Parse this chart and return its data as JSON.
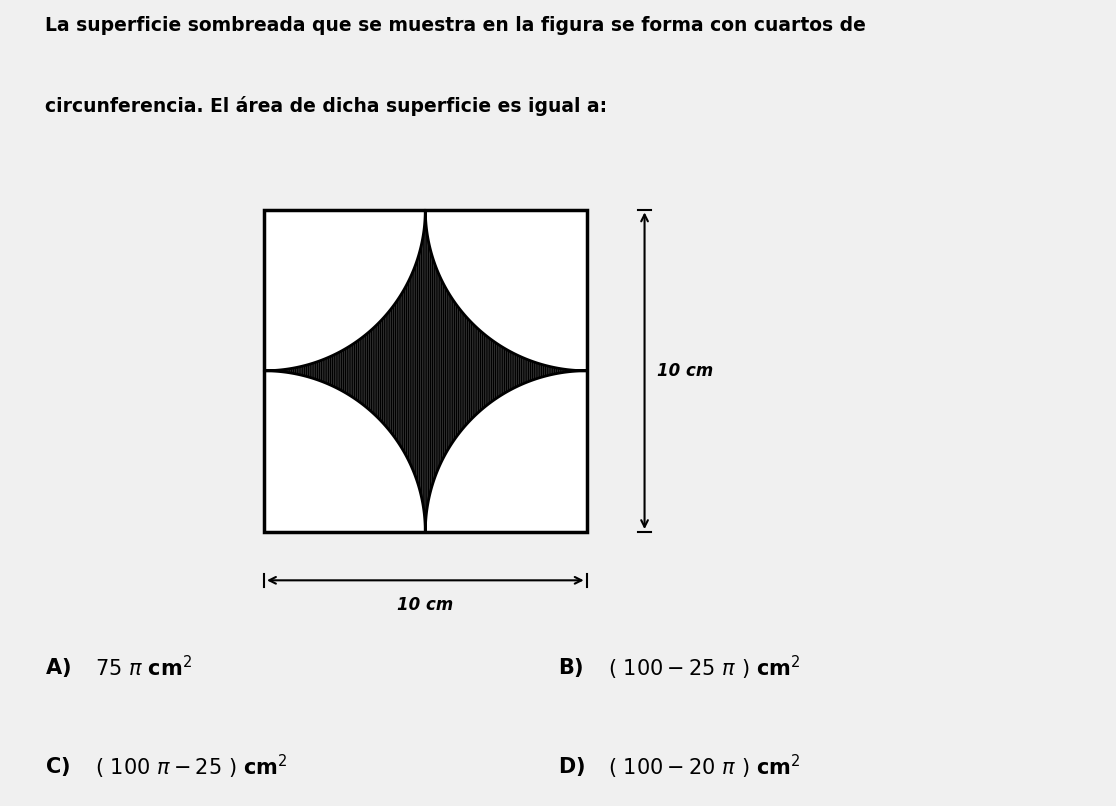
{
  "title_line1": "La superficie sombreada que se muestra en la figura se forma con cuartos de",
  "title_line2": "circunferencia. El área de dicha superficie es igual a:",
  "square_side": 10,
  "square_color": "white",
  "square_edge_color": "black",
  "shaded_color": "#606060",
  "shaded_hatch": "||||||",
  "dim_label": "10 cm",
  "bg_color": "#f0f0f0",
  "text_color": "#000000",
  "title_fontsize": 13.5,
  "answer_fontsize": 15,
  "label_fontsize": 12
}
